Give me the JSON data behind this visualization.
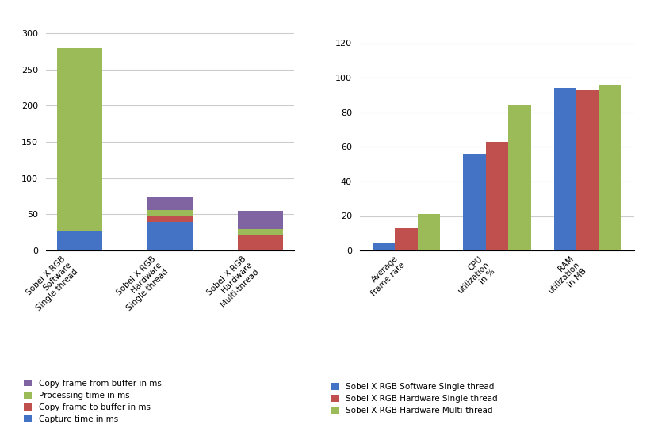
{
  "left_chart": {
    "categories": [
      "Sobel X RGB\nSoftware\nSingle thread",
      "Sobel X RGB\nHardware\nSingle thread",
      "Sobel X RGB\nHardware\nMulti-thread"
    ],
    "capture_time": [
      28,
      40,
      0
    ],
    "copy_to_buffer": [
      0,
      8,
      22
    ],
    "processing_time": [
      252,
      8,
      8
    ],
    "copy_from_buffer": [
      0,
      17,
      25
    ],
    "colors": {
      "capture": "#4472C4",
      "copy_to": "#C0504D",
      "processing": "#9BBB59",
      "copy_from": "#8064A2"
    },
    "ylim": [
      0,
      310
    ],
    "yticks": [
      0,
      50,
      100,
      150,
      200,
      250,
      300
    ],
    "legend_labels": [
      "Copy frame from buffer in ms",
      "Processing time in ms",
      "Copy frame to buffer in ms",
      "Capture time in ms"
    ]
  },
  "right_chart": {
    "categories": [
      "Average\nframe rate",
      "CPU\nutilization\nin %",
      "RAM\nutilization\nin MB"
    ],
    "software": [
      4,
      56,
      94
    ],
    "hardware_single": [
      13,
      63,
      93
    ],
    "hardware_multi": [
      21,
      84,
      96
    ],
    "colors": {
      "software": "#4472C4",
      "hardware_single": "#C0504D",
      "hardware_multi": "#9BBB59"
    },
    "ylim": [
      0,
      130
    ],
    "yticks": [
      0,
      20,
      40,
      60,
      80,
      100,
      120
    ],
    "legend_labels": [
      "Sobel X RGB Software Single thread",
      "Sobel X RGB Hardware Single thread",
      "Sobel X RGB Hardware Multi-thread"
    ]
  },
  "background_color": "#FFFFFF",
  "grid_color": "#CCCCCC"
}
